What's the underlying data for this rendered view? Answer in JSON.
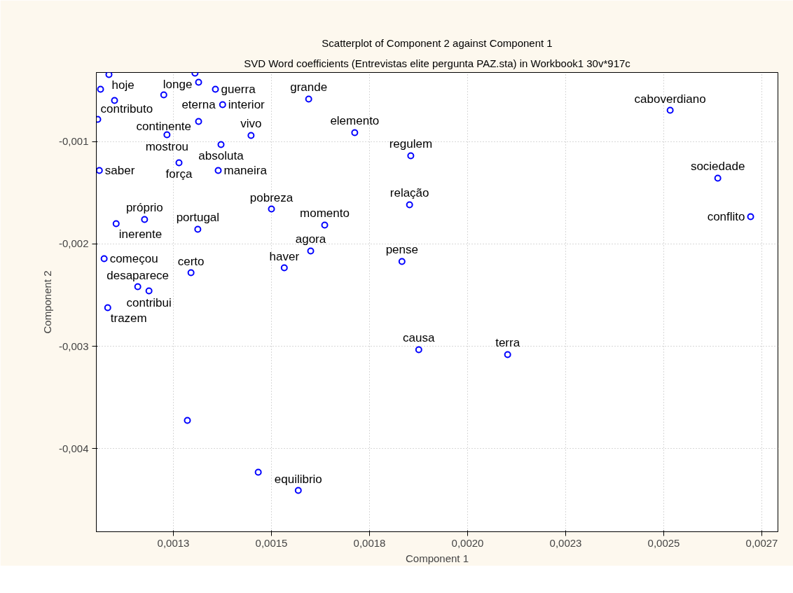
{
  "chart_data": {
    "type": "scatter",
    "title": "Scatterplot of Component 2 against Component 1",
    "subtitle": "SVD Word coefficients (Entrevistas elite pergunta PAZ.sta) in Workbook1 30v*917c",
    "xlabel": "Component 1",
    "ylabel": "Component 2",
    "xlim": [
      0.0010825,
      0.00278525
    ],
    "ylim": [
      -0.004815,
      -0.000322
    ],
    "xticks": [
      {
        "value": 0.001275,
        "label": "0,0013"
      },
      {
        "value": 0.00152,
        "label": "0,0015"
      },
      {
        "value": 0.001765,
        "label": "0,0018"
      },
      {
        "value": 0.00201,
        "label": "0,0020"
      },
      {
        "value": 0.002255,
        "label": "0,0023"
      },
      {
        "value": 0.0025,
        "label": "0,0025"
      },
      {
        "value": 0.002745,
        "label": "0,0027"
      }
    ],
    "yticks": [
      {
        "value": -0.001,
        "label": "-0,001"
      },
      {
        "value": -0.002,
        "label": "-0,002"
      },
      {
        "value": -0.003,
        "label": "-0,003"
      },
      {
        "value": -0.004,
        "label": "-0,004"
      }
    ],
    "grid": true,
    "marker": "circle",
    "series": [
      {
        "color": "#0000ff",
        "x": [
          0.001114,
          0.001329,
          0.001338,
          0.00138,
          0.001251,
          0.001398,
          0.001093,
          0.001128,
          0.001086,
          0.001338,
          0.001259,
          0.001469,
          0.001394,
          0.001289,
          0.001387,
          0.001613,
          0.001728,
          0.001868,
          0.002516,
          0.002635,
          0.001865,
          0.002717,
          0.00152,
          0.001653,
          0.001618,
          0.001552,
          0.001846,
          0.001336,
          0.001203,
          0.001132,
          0.00109,
          0.001102,
          0.001319,
          0.001186,
          0.001214,
          0.001111,
          0.001888,
          0.00211,
          0.00131,
          0.001487,
          0.001587
        ],
        "values": [
          -0.000342,
          -0.000329,
          -0.000418,
          -0.000486,
          -0.000541,
          -0.000637,
          -0.000486,
          -0.000596,
          -0.000781,
          -0.000801,
          -0.000932,
          -0.000938,
          -0.001027,
          -0.001205,
          -0.001281,
          -0.000582,
          -0.000911,
          -0.001137,
          -0.000692,
          -0.001356,
          -0.001616,
          -0.001733,
          -0.001658,
          -0.001815,
          -0.002068,
          -0.002233,
          -0.002171,
          -0.001856,
          -0.00176,
          -0.001801,
          -0.001281,
          -0.002144,
          -0.002281,
          -0.002418,
          -0.002459,
          -0.002623,
          -0.003034,
          -0.003082,
          -0.003726,
          -0.004233,
          -0.004411
        ]
      }
    ],
    "annotations": [
      {
        "text": "hoje",
        "x": 0.001114,
        "y": -0.000342
      },
      {
        "text": "longe",
        "x": 0.001329,
        "y": -0.000329
      },
      {
        "text": "eterna",
        "x": 0.001338,
        "y": -0.000418
      },
      {
        "text": "guerra",
        "x": 0.00138,
        "y": -0.000486
      },
      {
        "text": "continente",
        "x": 0.001251,
        "y": -0.000541
      },
      {
        "text": "interior",
        "x": 0.001398,
        "y": -0.000637
      },
      {
        "text": "contributo",
        "x": 0.001086,
        "y": -0.000781
      },
      {
        "text": "mostrou",
        "x": 0.001259,
        "y": -0.000932
      },
      {
        "text": "vivo",
        "x": 0.001469,
        "y": -0.000938
      },
      {
        "text": "absoluta",
        "x": 0.001394,
        "y": -0.001027
      },
      {
        "text": "força",
        "x": 0.001289,
        "y": -0.001205
      },
      {
        "text": "maneira",
        "x": 0.001387,
        "y": -0.001281
      },
      {
        "text": "grande",
        "x": 0.001613,
        "y": -0.000582
      },
      {
        "text": "elemento",
        "x": 0.001728,
        "y": -0.000911
      },
      {
        "text": "regulem",
        "x": 0.001868,
        "y": -0.001137
      },
      {
        "text": "caboverdiano",
        "x": 0.002516,
        "y": -0.000692
      },
      {
        "text": "sociedade",
        "x": 0.002635,
        "y": -0.001356
      },
      {
        "text": "relação",
        "x": 0.001865,
        "y": -0.001616
      },
      {
        "text": "conflito",
        "x": 0.002717,
        "y": -0.001733
      },
      {
        "text": "pobreza",
        "x": 0.00152,
        "y": -0.001658
      },
      {
        "text": "momento",
        "x": 0.001653,
        "y": -0.001815
      },
      {
        "text": "agora",
        "x": 0.001618,
        "y": -0.002068
      },
      {
        "text": "haver",
        "x": 0.001552,
        "y": -0.002233
      },
      {
        "text": "pense",
        "x": 0.001846,
        "y": -0.002171
      },
      {
        "text": "portugal",
        "x": 0.001336,
        "y": -0.001856
      },
      {
        "text": "próprio",
        "x": 0.001203,
        "y": -0.00176
      },
      {
        "text": "inerente",
        "x": 0.001132,
        "y": -0.001801
      },
      {
        "text": "saber",
        "x": 0.00109,
        "y": -0.001281
      },
      {
        "text": "começou",
        "x": 0.001102,
        "y": -0.002144
      },
      {
        "text": "certo",
        "x": 0.001319,
        "y": -0.002281
      },
      {
        "text": "desaparece",
        "x": 0.001186,
        "y": -0.002418
      },
      {
        "text": "contribui",
        "x": 0.001214,
        "y": -0.002459
      },
      {
        "text": "trazem",
        "x": 0.001111,
        "y": -0.002623
      },
      {
        "text": "causa",
        "x": 0.001888,
        "y": -0.003034
      },
      {
        "text": "terra",
        "x": 0.00211,
        "y": -0.003082
      },
      {
        "text": "equilibrio",
        "x": 0.001587,
        "y": -0.004411
      }
    ]
  }
}
